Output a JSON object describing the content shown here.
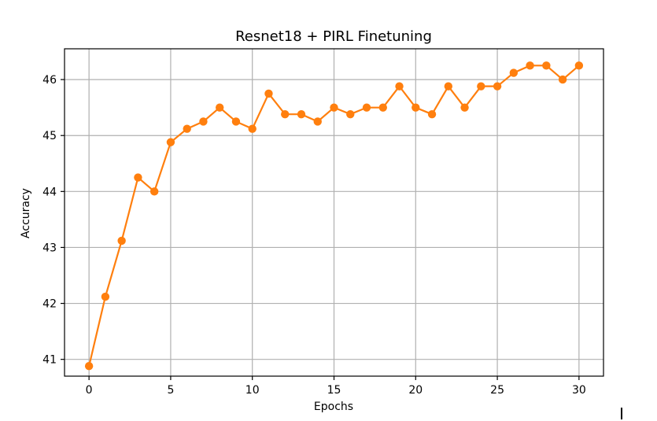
{
  "chart_data": {
    "type": "line",
    "title": "Resnet18 + PIRL Finetuning",
    "xlabel": "Epochs",
    "ylabel": "Accuracy",
    "xlim": [
      -1.5,
      31.5
    ],
    "ylim": [
      40.7,
      46.55
    ],
    "xticks": [
      0,
      5,
      10,
      15,
      20,
      25,
      30
    ],
    "yticks": [
      41,
      42,
      43,
      44,
      45,
      46
    ],
    "grid": true,
    "color": "#ff7f0e",
    "series": [
      {
        "name": "accuracy",
        "x": [
          0,
          1,
          2,
          3,
          4,
          5,
          6,
          7,
          8,
          9,
          10,
          11,
          12,
          13,
          14,
          15,
          16,
          17,
          18,
          19,
          20,
          21,
          22,
          23,
          24,
          25,
          26,
          27,
          28,
          29,
          30
        ],
        "values": [
          40.88,
          42.12,
          43.12,
          44.25,
          44.0,
          44.88,
          45.12,
          45.25,
          45.5,
          45.25,
          45.12,
          45.75,
          45.38,
          45.38,
          45.25,
          45.5,
          45.38,
          45.5,
          45.5,
          45.88,
          45.5,
          45.38,
          45.88,
          45.5,
          45.88,
          45.88,
          46.12,
          46.25,
          46.25,
          46.0,
          46.25
        ]
      }
    ]
  }
}
